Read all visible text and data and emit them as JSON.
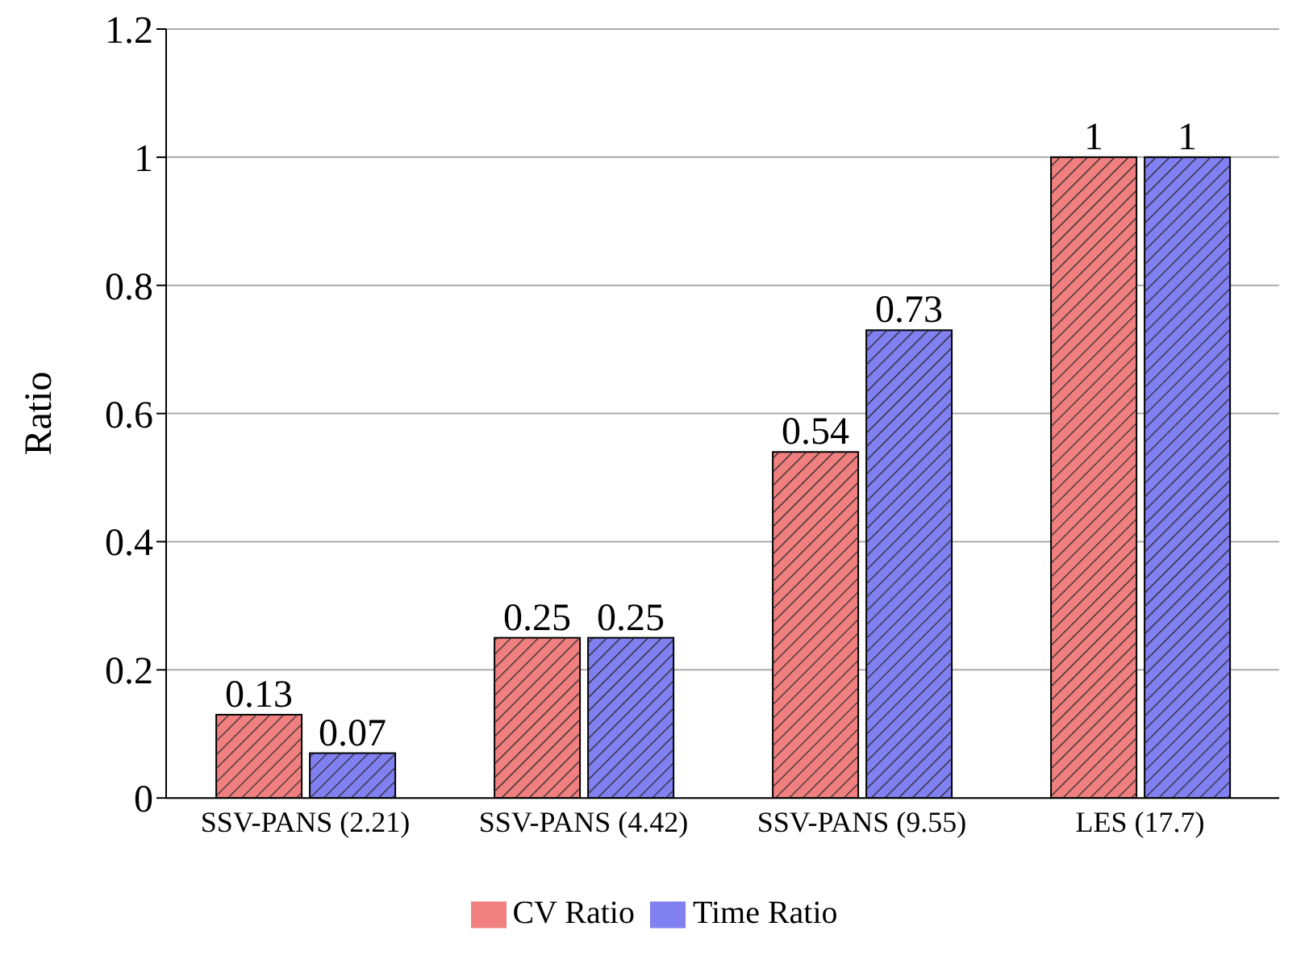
{
  "chart_data": {
    "type": "bar",
    "ylabel": "Ratio",
    "categories": [
      "SSV-PANS (2.21)",
      "SSV-PANS (4.42)",
      "SSV-PANS (9.55)",
      "LES (17.7)"
    ],
    "series": [
      {
        "name": "CV Ratio",
        "color": "#f08080",
        "values": [
          0.13,
          0.25,
          0.54,
          1
        ]
      },
      {
        "name": "Time Ratio",
        "color": "#8080f0",
        "values": [
          0.07,
          0.25,
          0.73,
          1
        ]
      }
    ],
    "ylim": [
      0,
      1.2
    ],
    "yticks": [
      0,
      0.2,
      0.4,
      0.6,
      0.8,
      1,
      1.2
    ],
    "grid": "y",
    "legend": "bottom",
    "data_labels": true
  }
}
